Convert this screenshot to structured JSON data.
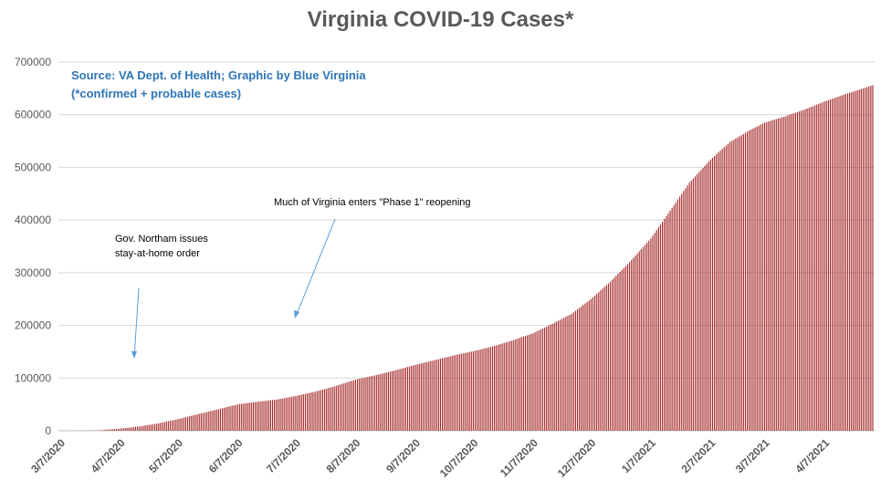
{
  "chart_data": {
    "type": "bar",
    "title": "Virginia COVID-19 Cases*",
    "xlabel": "",
    "ylabel": "",
    "ylim": [
      0,
      700000
    ],
    "yticks": [
      0,
      100000,
      200000,
      300000,
      400000,
      500000,
      600000,
      700000
    ],
    "bar_color": "#a52a2a",
    "grid": "horizontal",
    "x_tick_labels": [
      "3/7/2020",
      "4/7/2020",
      "5/7/2020",
      "6/7/2020",
      "7/7/2020",
      "8/7/2020",
      "9/7/2020",
      "10/7/2020",
      "11/7/2020",
      "12/7/2020",
      "1/7/2021",
      "2/7/2021",
      "3/7/2021",
      "4/7/2021"
    ],
    "x_start": "3/7/2020",
    "x_end": "5/2/2021",
    "series": [
      {
        "keypoints": [
          {
            "x": "3/7/2020",
            "y": 0
          },
          {
            "x": "3/17/2020",
            "y": 50
          },
          {
            "x": "3/27/2020",
            "y": 600
          },
          {
            "x": "4/7/2020",
            "y": 4000
          },
          {
            "x": "4/17/2020",
            "y": 8000
          },
          {
            "x": "4/27/2020",
            "y": 14000
          },
          {
            "x": "5/7/2020",
            "y": 22000
          },
          {
            "x": "5/17/2020",
            "y": 31000
          },
          {
            "x": "5/27/2020",
            "y": 40000
          },
          {
            "x": "6/7/2020",
            "y": 50000
          },
          {
            "x": "6/17/2020",
            "y": 55000
          },
          {
            "x": "6/27/2020",
            "y": 59000
          },
          {
            "x": "7/7/2020",
            "y": 66000
          },
          {
            "x": "7/17/2020",
            "y": 74000
          },
          {
            "x": "7/27/2020",
            "y": 84000
          },
          {
            "x": "8/7/2020",
            "y": 97000
          },
          {
            "x": "8/17/2020",
            "y": 105000
          },
          {
            "x": "8/27/2020",
            "y": 114000
          },
          {
            "x": "9/7/2020",
            "y": 125000
          },
          {
            "x": "9/17/2020",
            "y": 134000
          },
          {
            "x": "9/27/2020",
            "y": 143000
          },
          {
            "x": "10/7/2020",
            "y": 151000
          },
          {
            "x": "10/17/2020",
            "y": 160000
          },
          {
            "x": "10/27/2020",
            "y": 171000
          },
          {
            "x": "11/7/2020",
            "y": 185000
          },
          {
            "x": "11/17/2020",
            "y": 203000
          },
          {
            "x": "11/27/2020",
            "y": 222000
          },
          {
            "x": "12/7/2020",
            "y": 250000
          },
          {
            "x": "12/17/2020",
            "y": 283000
          },
          {
            "x": "12/27/2020",
            "y": 320000
          },
          {
            "x": "1/7/2021",
            "y": 365000
          },
          {
            "x": "1/17/2021",
            "y": 418000
          },
          {
            "x": "1/27/2021",
            "y": 471000
          },
          {
            "x": "2/7/2021",
            "y": 515000
          },
          {
            "x": "2/17/2021",
            "y": 548000
          },
          {
            "x": "2/27/2021",
            "y": 570000
          },
          {
            "x": "3/7/2021",
            "y": 585000
          },
          {
            "x": "3/17/2021",
            "y": 596000
          },
          {
            "x": "3/27/2021",
            "y": 609000
          },
          {
            "x": "4/7/2021",
            "y": 625000
          },
          {
            "x": "4/17/2021",
            "y": 638000
          },
          {
            "x": "4/27/2021",
            "y": 650000
          },
          {
            "x": "5/2/2021",
            "y": 656000
          }
        ]
      }
    ]
  },
  "source_line1": "Source: VA Dept. of Health; Graphic by Blue Virginia",
  "source_line2": "(*confirmed + probable cases)",
  "annotation_stay_home": "Gov. Northam issues stay-at-home order",
  "annotation_phase1": "Much of Virginia enters \"Phase 1\" reopening",
  "arrow_color": "#5b9bd5",
  "text_color": "#595959",
  "source_color": "#2e75b6"
}
